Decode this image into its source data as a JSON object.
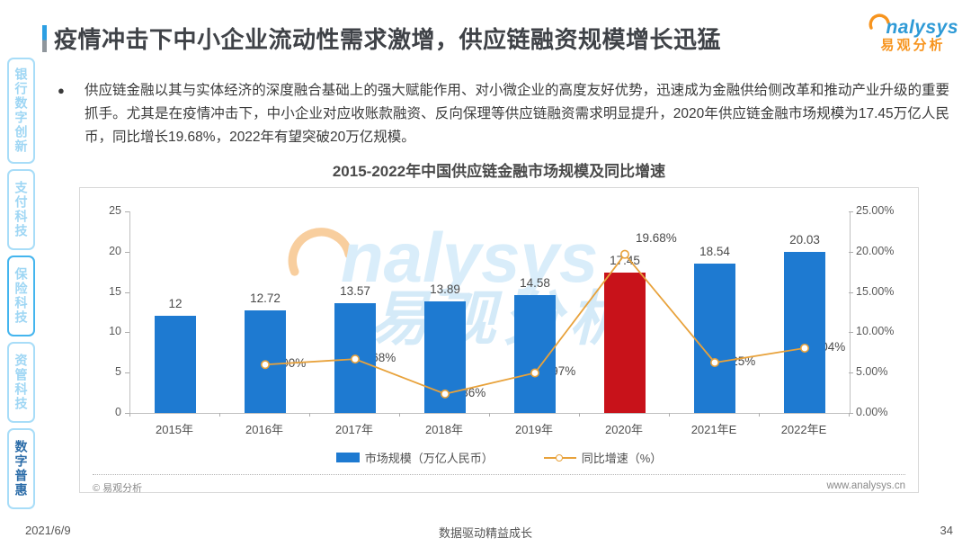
{
  "page": {
    "title": "疫情冲击下中小企业流动性需求激增，供应链融资规模增长迅猛",
    "logo": {
      "brand": "nalysys",
      "brand_cn": "易观分析"
    },
    "footer": {
      "date": "2021/6/9",
      "slogan": "数据驱动精益成长",
      "page_number": "34"
    }
  },
  "sidebar": {
    "items": [
      {
        "key": "banking-digital-innovation",
        "label": "银行数字创新",
        "active": false,
        "border_accent": false
      },
      {
        "key": "payment-tech",
        "label": "支付科技",
        "active": false,
        "border_accent": false
      },
      {
        "key": "insurance-tech",
        "label": "保险科技",
        "active": false,
        "border_accent": true
      },
      {
        "key": "asset-management-tech",
        "label": "资管科技",
        "active": false,
        "border_accent": false
      },
      {
        "key": "digital-inclusion",
        "label": "数字普惠",
        "active": true,
        "border_accent": false
      }
    ]
  },
  "bullet": {
    "dot": "●",
    "text": "供应链金融以其与实体经济的深度融合基础上的强大赋能作用、对小微企业的高度友好优势，迅速成为金融供给侧改革和推动产业升级的重要抓手。尤其是在疫情冲击下，中小企业对应收账款融资、反向保理等供应链融资需求明显提升，2020年供应链金融市场规模为17.45万亿人民币，同比增长19.68%，2022年有望突破20万亿规模。"
  },
  "chart": {
    "title": "2015-2022年中国供应链金融市场规模及同比增速",
    "legend": [
      {
        "label": "市场规模（万亿人民币）",
        "type": "bar",
        "color": "#1E7AD1"
      },
      {
        "label": "同比增速（%）",
        "type": "line",
        "color": "#E8A23B"
      }
    ],
    "source": "© 易观分析",
    "website": "www.analysys.cn",
    "watermark": {
      "text": "nalysys",
      "text_cn": "易观分析"
    }
  },
  "chart_data": {
    "type": "bar+line",
    "title": "2015-2022年中国供应链金融市场规模及同比增速",
    "categories": [
      "2015年",
      "2016年",
      "2017年",
      "2018年",
      "2019年",
      "2020年",
      "2021年E",
      "2022年E"
    ],
    "series": [
      {
        "name": "市场规模（万亿人民币）",
        "type": "bar",
        "values": [
          12,
          12.72,
          13.57,
          13.89,
          14.58,
          17.45,
          18.54,
          20.03
        ],
        "value_labels": [
          "12",
          "12.72",
          "13.57",
          "13.89",
          "14.58",
          "17.45",
          "18.54",
          "20.03"
        ]
      },
      {
        "name": "同比增速（%）",
        "type": "line",
        "values": [
          null,
          6.0,
          6.68,
          2.36,
          4.97,
          19.68,
          6.25,
          8.04
        ],
        "value_labels": [
          null,
          "6.00%",
          "6.68%",
          "2.36%",
          "4.97%",
          "19.68%",
          "6.25%",
          "8.04%"
        ]
      }
    ],
    "left_axis": {
      "min": 0,
      "max": 25,
      "ticks": [
        0,
        5,
        10,
        15,
        20,
        25
      ]
    },
    "right_axis": {
      "min": 0,
      "max": 25,
      "ticks": [
        {
          "label": "0.00%",
          "value": 0
        },
        {
          "label": "5.00%",
          "value": 5
        },
        {
          "label": "10.00%",
          "value": 10
        },
        {
          "label": "15.00%",
          "value": 15
        },
        {
          "label": "20.00%",
          "value": 20
        },
        {
          "label": "25.00%",
          "value": 25
        }
      ]
    },
    "highlight_index": 5,
    "colors": {
      "bar": "#1E7AD1",
      "highlight": "#C8121A",
      "line": "#E8A23B"
    },
    "legend_position": "bottom",
    "grid": false
  }
}
